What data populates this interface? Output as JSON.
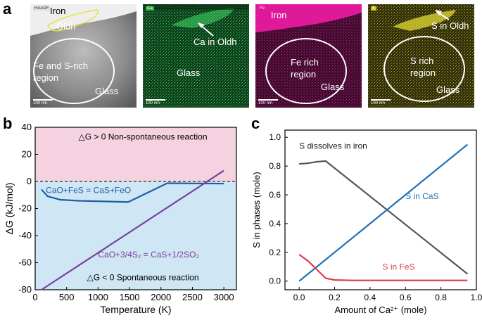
{
  "panels": {
    "a": "a",
    "b": "b",
    "c": "c"
  },
  "panel_a": {
    "images": [
      {
        "tag": "HAADF",
        "scale": "100 nm",
        "labels": [
          "Iron",
          "Oldh",
          "Fe and S-rich",
          "region",
          "Glass"
        ]
      },
      {
        "tag": "Ca",
        "scale": "100 nm",
        "labels": [
          "Ca in Oldh",
          "Glass"
        ]
      },
      {
        "tag": "Fe",
        "scale": "100 nm",
        "labels": [
          "Iron",
          "Fe rich",
          "region",
          "Glass"
        ]
      },
      {
        "tag": "S",
        "scale": "100 nm",
        "labels": [
          "S in Oldh",
          "S rich",
          "region",
          "Glass"
        ]
      }
    ],
    "colors": {
      "ca": "#2db34a",
      "fe": "#e0199a",
      "s": "#c9c22a"
    }
  },
  "chart_data": [
    {
      "type": "line",
      "panel": "b",
      "xlabel": "Temperature (K)",
      "ylabel": "ΔG (kJ/mol)",
      "xlim": [
        0,
        3200
      ],
      "ylim": [
        -80,
        40
      ],
      "xticks": [
        0,
        500,
        1000,
        1500,
        2000,
        2500,
        3000
      ],
      "yticks": [
        -80,
        -60,
        -40,
        -20,
        0,
        20,
        40
      ],
      "annotations": {
        "top": "△G > 0 Non-spontaneous reaction",
        "bottom": "△G < 0 Spontaneous reaction"
      },
      "series": [
        {
          "name": "CaO+FeS = CaS+FeO",
          "color": "#1f5fa8",
          "x": [
            100,
            200,
            400,
            700,
            1000,
            1300,
            1480,
            2100,
            2600,
            3000
          ],
          "y": [
            -6,
            -11,
            -13.5,
            -14.3,
            -14.6,
            -15,
            -15.2,
            -1.3,
            -1.5,
            -1.6
          ]
        },
        {
          "name": "CaO+3/4S₂ = CaS+1/2SO₂",
          "color": "#7b3fa0",
          "x": [
            100,
            3000
          ],
          "y": [
            -80,
            8
          ]
        }
      ],
      "zero_line": 0,
      "colors": {
        "positive_region": "#f4d2df",
        "negative_region": "#cfe6f4"
      }
    },
    {
      "type": "line",
      "panel": "c",
      "xlabel": "Amount of Ca²⁺ (mole)",
      "ylabel": "S in phases (mole)",
      "xlim": [
        -0.08,
        1.0
      ],
      "ylim": [
        -0.06,
        1.05
      ],
      "xticks": [
        0.0,
        0.2,
        0.4,
        0.6,
        0.8,
        1.0
      ],
      "yticks": [
        0.0,
        0.2,
        0.4,
        0.6,
        0.8,
        1.0
      ],
      "xtick_labels": [
        "0.0",
        "0.2",
        "0.4",
        "0.6",
        "0.8",
        "1.0"
      ],
      "ytick_labels": [
        "0.0",
        "0.2",
        "0.4",
        "0.6",
        "0.8",
        "1.0"
      ],
      "series": [
        {
          "name": "S dissolves in iron",
          "color": "#555555",
          "x": [
            0.0,
            0.05,
            0.1,
            0.15,
            0.95
          ],
          "y": [
            0.815,
            0.82,
            0.83,
            0.835,
            0.05
          ]
        },
        {
          "name": "S in CaS",
          "color": "#1f6fb8",
          "x": [
            0.0,
            0.95
          ],
          "y": [
            0.0,
            0.95
          ]
        },
        {
          "name": "S in FeS",
          "color": "#d93c4a",
          "x": [
            0.0,
            0.05,
            0.1,
            0.15,
            0.2,
            0.3,
            0.5,
            0.7,
            0.95
          ],
          "y": [
            0.185,
            0.14,
            0.08,
            0.02,
            0.008,
            0.005,
            0.005,
            0.005,
            0.005
          ]
        }
      ]
    }
  ]
}
